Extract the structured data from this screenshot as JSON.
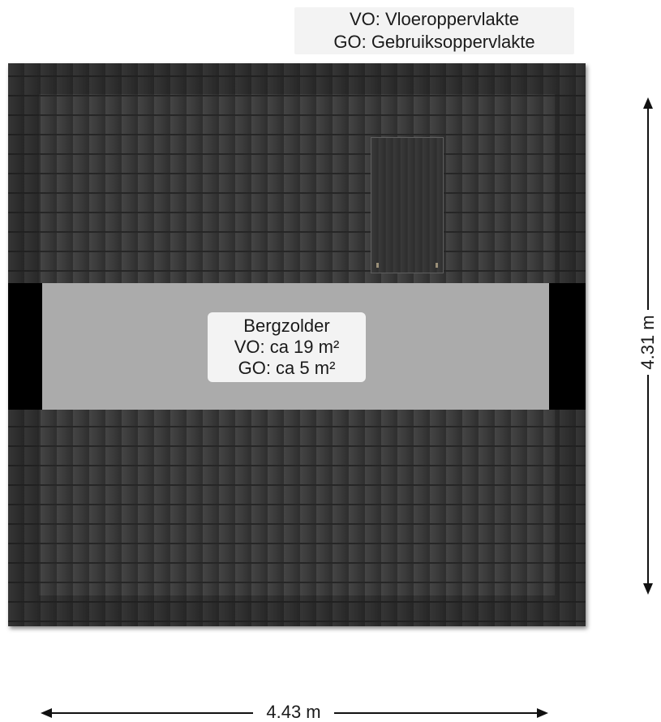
{
  "legend": {
    "vo": "VO: Vloeroppervlakte",
    "go": "GO: Gebruiksoppervlakte"
  },
  "room": {
    "name": "Bergzolder",
    "vo": "VO: ca 19 m²",
    "go": "GO: ca 5 m²"
  },
  "dimensions": {
    "height": "4.31 m",
    "width": "4.43 m"
  },
  "colors": {
    "roof_tiles": "#3d3d3d",
    "floor": "#ababab",
    "low_ceiling": "#000000",
    "label_bg": "#f3f3f3"
  }
}
